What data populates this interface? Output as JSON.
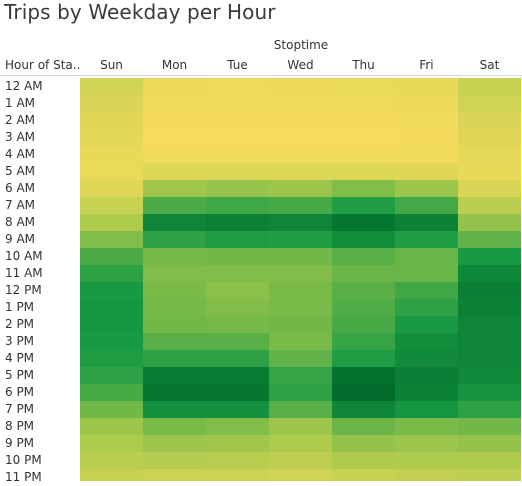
{
  "title": "Trips by Weekday per Hour",
  "column_field_label": "Stoptime",
  "row_field_label": "Hour of Sta..",
  "chart_data": {
    "type": "heatmap",
    "title": "Trips by Weekday per Hour",
    "x_field": "Stoptime",
    "y_field": "Hour of Sta..",
    "x": [
      "Sun",
      "Mon",
      "Tue",
      "Wed",
      "Thu",
      "Fri",
      "Sat"
    ],
    "y": [
      "12 AM",
      "1 AM",
      "2 AM",
      "3 AM",
      "4 AM",
      "5 AM",
      "6 AM",
      "7 AM",
      "8 AM",
      "9 AM",
      "10 AM",
      "11 AM",
      "12 PM",
      "1 PM",
      "2 PM",
      "3 PM",
      "4 PM",
      "5 PM",
      "6 PM",
      "7 PM",
      "8 PM",
      "9 PM",
      "10 PM",
      "11 PM"
    ],
    "values": [
      [
        0.16,
        0.04,
        0.03,
        0.04,
        0.05,
        0.06,
        0.2
      ],
      [
        0.13,
        0.02,
        0.02,
        0.02,
        0.03,
        0.04,
        0.16
      ],
      [
        0.1,
        0.01,
        0.01,
        0.01,
        0.01,
        0.02,
        0.12
      ],
      [
        0.08,
        0.0,
        0.0,
        0.0,
        0.0,
        0.01,
        0.1
      ],
      [
        0.06,
        0.02,
        0.02,
        0.02,
        0.02,
        0.02,
        0.07
      ],
      [
        0.05,
        0.11,
        0.11,
        0.11,
        0.11,
        0.1,
        0.06
      ],
      [
        0.1,
        0.35,
        0.37,
        0.36,
        0.42,
        0.36,
        0.12
      ],
      [
        0.2,
        0.55,
        0.58,
        0.56,
        0.65,
        0.57,
        0.25
      ],
      [
        0.3,
        0.82,
        0.85,
        0.82,
        0.92,
        0.84,
        0.38
      ],
      [
        0.42,
        0.62,
        0.66,
        0.65,
        0.76,
        0.65,
        0.5
      ],
      [
        0.55,
        0.45,
        0.46,
        0.46,
        0.52,
        0.48,
        0.68
      ],
      [
        0.62,
        0.42,
        0.42,
        0.42,
        0.48,
        0.48,
        0.8
      ],
      [
        0.68,
        0.44,
        0.4,
        0.44,
        0.52,
        0.58,
        0.86
      ],
      [
        0.7,
        0.45,
        0.42,
        0.44,
        0.54,
        0.62,
        0.84
      ],
      [
        0.7,
        0.46,
        0.45,
        0.46,
        0.56,
        0.68,
        0.82
      ],
      [
        0.68,
        0.52,
        0.52,
        0.44,
        0.6,
        0.76,
        0.82
      ],
      [
        0.66,
        0.62,
        0.62,
        0.5,
        0.66,
        0.78,
        0.82
      ],
      [
        0.62,
        0.88,
        0.88,
        0.6,
        0.95,
        0.86,
        0.78
      ],
      [
        0.56,
        0.92,
        0.92,
        0.62,
        1.0,
        0.84,
        0.72
      ],
      [
        0.46,
        0.74,
        0.74,
        0.52,
        0.82,
        0.7,
        0.62
      ],
      [
        0.36,
        0.44,
        0.42,
        0.36,
        0.48,
        0.44,
        0.46
      ],
      [
        0.3,
        0.36,
        0.35,
        0.3,
        0.38,
        0.36,
        0.38
      ],
      [
        0.25,
        0.28,
        0.27,
        0.24,
        0.3,
        0.3,
        0.3
      ],
      [
        0.2,
        0.18,
        0.17,
        0.16,
        0.2,
        0.22,
        0.24
      ]
    ],
    "color_scale": [
      "#f7dc5c",
      "#a7c94c",
      "#1a9b44",
      "#006b2a"
    ],
    "legend": "none",
    "grid": false
  }
}
